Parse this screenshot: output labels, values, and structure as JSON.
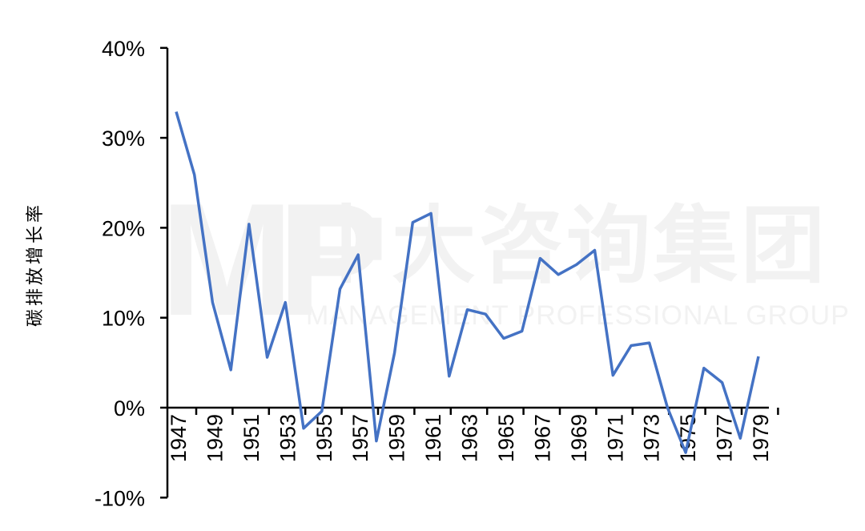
{
  "watermark": {
    "cn": "中大咨询集团",
    "en": "MANAGEMENT PROFESSIONAL GROUP",
    "logo": "MP"
  },
  "chart_data": {
    "type": "line",
    "title": "",
    "xlabel": "",
    "ylabel": "碳排放增长率",
    "ylim": [
      -0.1,
      0.4
    ],
    "yticks": [
      "40%",
      "30%",
      "20%",
      "10%",
      "0%",
      "-10%"
    ],
    "ytick_values": [
      0.4,
      0.3,
      0.2,
      0.1,
      0.0,
      -0.1
    ],
    "xtick_labels": [
      "1947",
      "1949",
      "1951",
      "1953",
      "1955",
      "1957",
      "1959",
      "1961",
      "1963",
      "1965",
      "1967",
      "1969",
      "1971",
      "1973",
      "1975",
      "1977",
      "1979"
    ],
    "grid": false,
    "legend": null,
    "line_color": "#4472C4",
    "x": [
      1947,
      1948,
      1949,
      1950,
      1951,
      1952,
      1953,
      1954,
      1955,
      1956,
      1957,
      1958,
      1959,
      1960,
      1961,
      1962,
      1963,
      1964,
      1965,
      1966,
      1967,
      1968,
      1969,
      1970,
      1971,
      1972,
      1973,
      1974,
      1975,
      1976,
      1977,
      1978,
      1979
    ],
    "series": [
      {
        "name": "碳排放增长率",
        "values": [
          0.329,
          0.259,
          0.117,
          0.042,
          0.204,
          0.056,
          0.117,
          -0.023,
          -0.004,
          0.132,
          0.17,
          -0.037,
          0.061,
          0.206,
          0.216,
          0.035,
          0.109,
          0.104,
          0.077,
          0.085,
          0.166,
          0.148,
          0.159,
          0.175,
          0.036,
          0.069,
          0.072,
          0.0,
          -0.05,
          0.044,
          0.028,
          -0.034,
          0.057
        ]
      }
    ]
  }
}
